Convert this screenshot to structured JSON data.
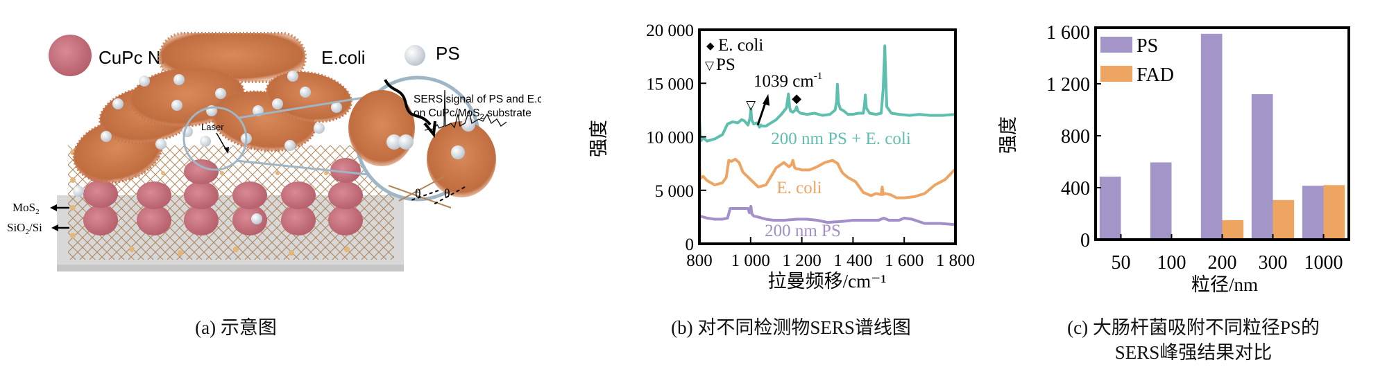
{
  "panel_a": {
    "caption": "(a) 示意图",
    "legend": {
      "cupc": "CuPc NPs",
      "ecoli": "E.coli",
      "ps": "PS"
    },
    "laser_label": "Laser",
    "sers_label_line1": "SERS signal of PS and E.coli",
    "sers_label_line2_prefix": "on CuPc/MoS",
    "sers_label_line2_sub": "2",
    "sers_label_line2_suffix": " substrate",
    "mos2_label": "MoS",
    "mos2_sub": "2",
    "sio2_label_prefix": "SiO",
    "sio2_sub": "2",
    "sio2_label_suffix": "/Si",
    "theta": "θ",
    "colors": {
      "cupc": "#c9707c",
      "ecoli": "#c8744a",
      "ps": "#dde3ea",
      "lattice": "#b08552",
      "substrate": "#d5d5d5",
      "lens": "#9fb6c6"
    }
  },
  "panel_b": {
    "caption": "(b) 对不同检测物SERS谱线图"
  },
  "panel_c": {
    "caption_line1": "(c) 大肠杆菌吸附不同粒径PS的",
    "caption_line2": "SERS峰强结果对比"
  },
  "chart_data": [
    {
      "type": "line",
      "title": "",
      "xlabel": "拉曼频移/cm⁻¹",
      "ylabel": "强度",
      "xlim": [
        800,
        1800
      ],
      "ylim": [
        0,
        20000
      ],
      "xticks": [
        800,
        1000,
        1200,
        1400,
        1600,
        1800
      ],
      "xtick_labels": [
        "800",
        "1 000",
        "1 200",
        "1 400",
        "1 600",
        "1 800"
      ],
      "yticks": [
        0,
        5000,
        10000,
        15000,
        20000
      ],
      "ytick_labels": [
        "0",
        "5 000",
        "10 000",
        "15 000",
        "20 000"
      ],
      "grid": false,
      "legend_markers": [
        {
          "symbol": "◆",
          "label": "E. coli"
        },
        {
          "symbol": "▽",
          "label": "PS"
        }
      ],
      "annotation": {
        "text": "1039 cm",
        "sup": "-1",
        "x": 1039
      },
      "peak_markers": [
        {
          "symbol": "▽",
          "x": 1001,
          "y": 12600
        },
        {
          "symbol": "◆",
          "x": 1180,
          "y": 13200
        }
      ],
      "series": [
        {
          "name": "200 nm PS + E. coli",
          "color": "#5fbfae",
          "x": [
            800,
            805,
            815,
            830,
            860,
            890,
            910,
            930,
            950,
            965,
            975,
            990,
            998,
            1001,
            1004,
            1012,
            1025,
            1035,
            1040,
            1046,
            1060,
            1080,
            1100,
            1120,
            1140,
            1148,
            1152,
            1156,
            1165,
            1175,
            1180,
            1185,
            1195,
            1220,
            1250,
            1280,
            1310,
            1330,
            1336,
            1339,
            1343,
            1350,
            1365,
            1380,
            1400,
            1420,
            1440,
            1445,
            1448,
            1452,
            1465,
            1490,
            1510,
            1518,
            1522,
            1524,
            1527,
            1532,
            1550,
            1580,
            1620,
            1660,
            1700,
            1750,
            1800
          ],
          "y": [
            11800,
            9600,
            9900,
            9600,
            9800,
            10200,
            11200,
            11400,
            11300,
            11600,
            11500,
            11100,
            11800,
            12600,
            11600,
            11200,
            11300,
            10900,
            11100,
            11000,
            11000,
            11300,
            11600,
            12100,
            12700,
            14000,
            12800,
            12400,
            12300,
            12500,
            12800,
            12400,
            12200,
            12100,
            12200,
            12000,
            12100,
            12500,
            13300,
            14900,
            13200,
            12600,
            12400,
            12100,
            12100,
            12200,
            12200,
            13000,
            13900,
            12700,
            12200,
            12100,
            12200,
            14500,
            17000,
            18500,
            16000,
            12800,
            12200,
            12100,
            12000,
            12100,
            12000,
            12000,
            12100
          ]
        },
        {
          "name": "E. coli",
          "color": "#eea462",
          "x": [
            800,
            803,
            815,
            830,
            860,
            890,
            905,
            915,
            925,
            940,
            955,
            970,
            1000,
            1030,
            1060,
            1080,
            1100,
            1130,
            1150,
            1160,
            1165,
            1172,
            1180,
            1187,
            1200,
            1230,
            1260,
            1290,
            1320,
            1340,
            1350,
            1360,
            1380,
            1410,
            1440,
            1470,
            1490,
            1510,
            1514,
            1518,
            1525,
            1545,
            1570,
            1600,
            1640,
            1680,
            1720,
            1760,
            1800
          ],
          "y": [
            7600,
            6100,
            6300,
            5900,
            5500,
            5700,
            6200,
            7800,
            7700,
            7900,
            7600,
            6700,
            6000,
            5300,
            5500,
            6300,
            7100,
            7600,
            7200,
            7400,
            7800,
            7100,
            7000,
            7000,
            6900,
            6900,
            7200,
            7600,
            7800,
            7500,
            7000,
            6600,
            6200,
            5800,
            4800,
            4500,
            4700,
            4600,
            5300,
            4600,
            4700,
            4600,
            4300,
            4300,
            4400,
            4700,
            5500,
            6000,
            7000
          ]
        },
        {
          "name": "200 nm PS",
          "color": "#a48fca",
          "x": [
            800,
            830,
            860,
            890,
            910,
            920,
            940,
            960,
            990,
            995,
            1001,
            1005,
            1012,
            1030,
            1060,
            1090,
            1130,
            1180,
            1220,
            1260,
            1300,
            1360,
            1400,
            1440,
            1500,
            1520,
            1540,
            1580,
            1600,
            1630,
            1680,
            1740,
            1800
          ],
          "y": [
            2600,
            2400,
            2300,
            2300,
            2400,
            3300,
            3300,
            3300,
            3300,
            2900,
            3500,
            2800,
            2600,
            2500,
            2300,
            2200,
            2200,
            2300,
            2300,
            2200,
            2000,
            2100,
            2200,
            2200,
            2200,
            2400,
            2200,
            2200,
            2400,
            2300,
            1900,
            1900,
            1800
          ]
        }
      ],
      "series_label_positions": "in-plot"
    },
    {
      "type": "bar",
      "title": "",
      "xlabel": "粒径/nm",
      "ylabel": "强度",
      "categories": [
        "50",
        "100",
        "200",
        "300",
        "1000"
      ],
      "ylim": [
        0,
        1600
      ],
      "yticks": [
        0,
        400,
        800,
        1200,
        1600
      ],
      "ytick_labels": [
        "0",
        "400",
        "800",
        "1 200",
        "1 600"
      ],
      "grid": false,
      "legend_position": "top-left",
      "series": [
        {
          "name": "PS",
          "color": "#a495c8",
          "values": [
            485,
            595,
            1585,
            1120,
            415
          ]
        },
        {
          "name": "FAD",
          "color": "#eea562",
          "values": [
            0,
            0,
            150,
            305,
            420
          ]
        }
      ]
    }
  ]
}
